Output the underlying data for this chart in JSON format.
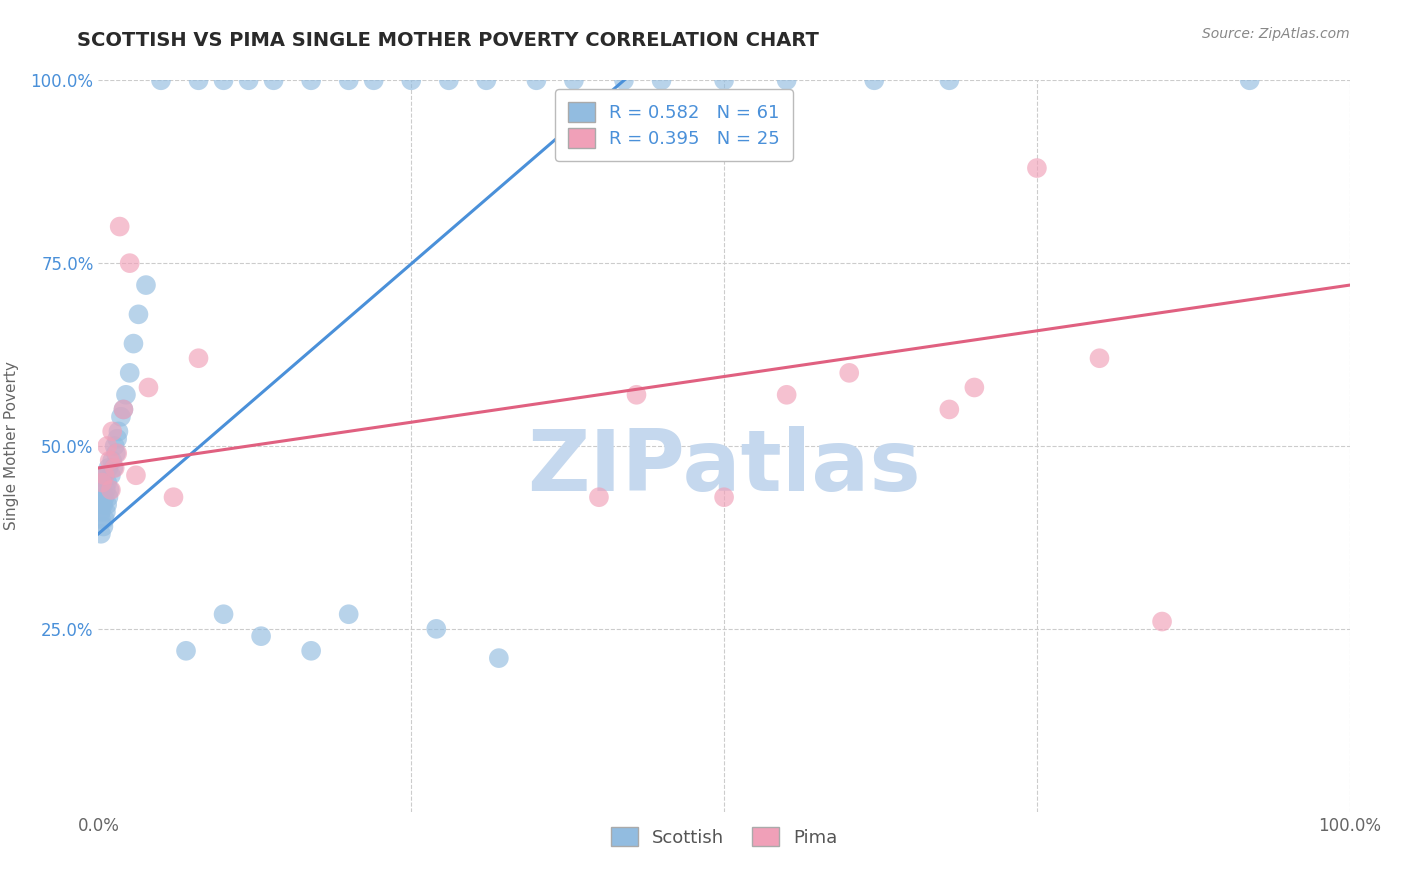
{
  "title": "SCOTTISH VS PIMA SINGLE MOTHER POVERTY CORRELATION CHART",
  "source": "Source: ZipAtlas.com",
  "ylabel": "Single Mother Poverty",
  "xlim": [
    0,
    1
  ],
  "ylim": [
    0,
    1
  ],
  "scottish_color": "#92bce0",
  "pima_color": "#f0a0b8",
  "scottish_line_color": "#4a90d9",
  "pima_line_color": "#e06080",
  "scottish_R": 0.582,
  "scottish_N": 61,
  "pima_R": 0.395,
  "pima_N": 25,
  "watermark": "ZIPatlas",
  "watermark_color": "#c5d8ee",
  "background_color": "#ffffff",
  "grid_color": "#cccccc",
  "title_color": "#2a2a2a",
  "scottish_x": [
    0.002,
    0.002,
    0.002,
    0.003,
    0.003,
    0.003,
    0.003,
    0.004,
    0.004,
    0.004,
    0.005,
    0.005,
    0.005,
    0.006,
    0.006,
    0.007,
    0.007,
    0.008,
    0.008,
    0.009,
    0.01,
    0.011,
    0.012,
    0.013,
    0.014,
    0.015,
    0.016,
    0.018,
    0.02,
    0.022,
    0.025,
    0.028,
    0.032,
    0.038,
    0.05,
    0.08,
    0.1,
    0.12,
    0.14,
    0.17,
    0.2,
    0.22,
    0.25,
    0.28,
    0.31,
    0.35,
    0.38,
    0.42,
    0.45,
    0.5,
    0.55,
    0.62,
    0.68,
    0.07,
    0.1,
    0.13,
    0.17,
    0.2,
    0.27,
    0.32,
    0.92
  ],
  "scottish_y": [
    0.38,
    0.4,
    0.41,
    0.42,
    0.43,
    0.44,
    0.45,
    0.39,
    0.42,
    0.46,
    0.4,
    0.43,
    0.46,
    0.41,
    0.44,
    0.42,
    0.45,
    0.43,
    0.47,
    0.44,
    0.46,
    0.48,
    0.47,
    0.5,
    0.49,
    0.51,
    0.52,
    0.54,
    0.55,
    0.57,
    0.6,
    0.64,
    0.68,
    0.72,
    1.0,
    1.0,
    1.0,
    1.0,
    1.0,
    1.0,
    1.0,
    1.0,
    1.0,
    1.0,
    1.0,
    1.0,
    1.0,
    1.0,
    1.0,
    1.0,
    1.0,
    1.0,
    1.0,
    0.22,
    0.27,
    0.24,
    0.22,
    0.27,
    0.25,
    0.21,
    1.0
  ],
  "pima_x": [
    0.003,
    0.005,
    0.007,
    0.009,
    0.01,
    0.011,
    0.013,
    0.015,
    0.017,
    0.02,
    0.025,
    0.03,
    0.04,
    0.06,
    0.08,
    0.55,
    0.6,
    0.68,
    0.7,
    0.75,
    0.8,
    0.85,
    0.4,
    0.43,
    0.5
  ],
  "pima_y": [
    0.45,
    0.46,
    0.5,
    0.48,
    0.44,
    0.52,
    0.47,
    0.49,
    0.8,
    0.55,
    0.75,
    0.46,
    0.58,
    0.43,
    0.62,
    0.57,
    0.6,
    0.55,
    0.58,
    0.88,
    0.62,
    0.26,
    0.43,
    0.57,
    0.43
  ],
  "scottish_line_x0": 0.0,
  "scottish_line_y0": 0.38,
  "scottish_line_x1": 0.42,
  "scottish_line_y1": 1.0,
  "pima_line_x0": 0.0,
  "pima_line_y0": 0.47,
  "pima_line_x1": 1.0,
  "pima_line_y1": 0.72
}
